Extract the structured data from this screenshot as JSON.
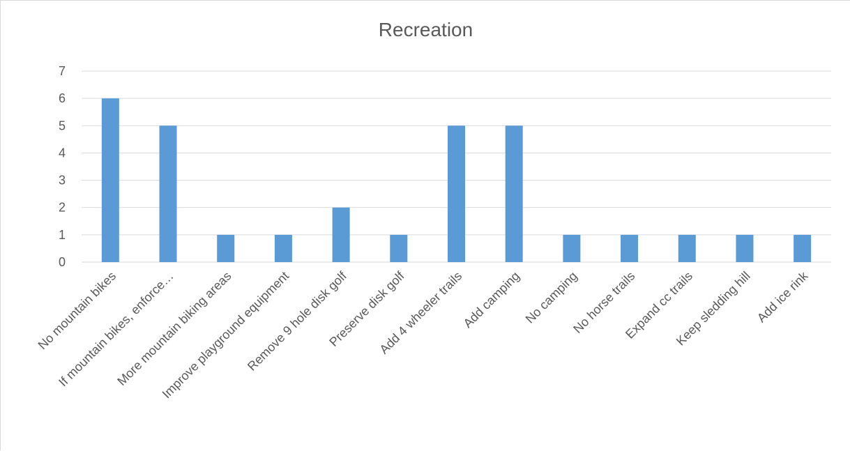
{
  "chart_data": {
    "type": "bar",
    "title": "Recreation",
    "categories": [
      "No mountain bikes",
      "If mountain bikes, enforce…",
      "More mountain biking areas",
      "Improve playground equipment",
      "Remove 9 hole disk golf",
      "Preserve disk golf",
      "Add 4 wheeler trails",
      "Add camping",
      "No camping",
      "No horse trails",
      "Expand cc trails",
      "Keep sledding hill",
      "Add ice rink"
    ],
    "values": [
      6,
      5,
      1,
      1,
      2,
      1,
      5,
      5,
      1,
      1,
      1,
      1,
      1
    ],
    "ylim": [
      0,
      7
    ],
    "yticks": [
      0,
      1,
      2,
      3,
      4,
      5,
      6,
      7
    ],
    "grid": true,
    "legend": "none",
    "bar_color": "#5b9bd5",
    "grid_color": "#d9d9d9",
    "text_color": "#595959"
  }
}
